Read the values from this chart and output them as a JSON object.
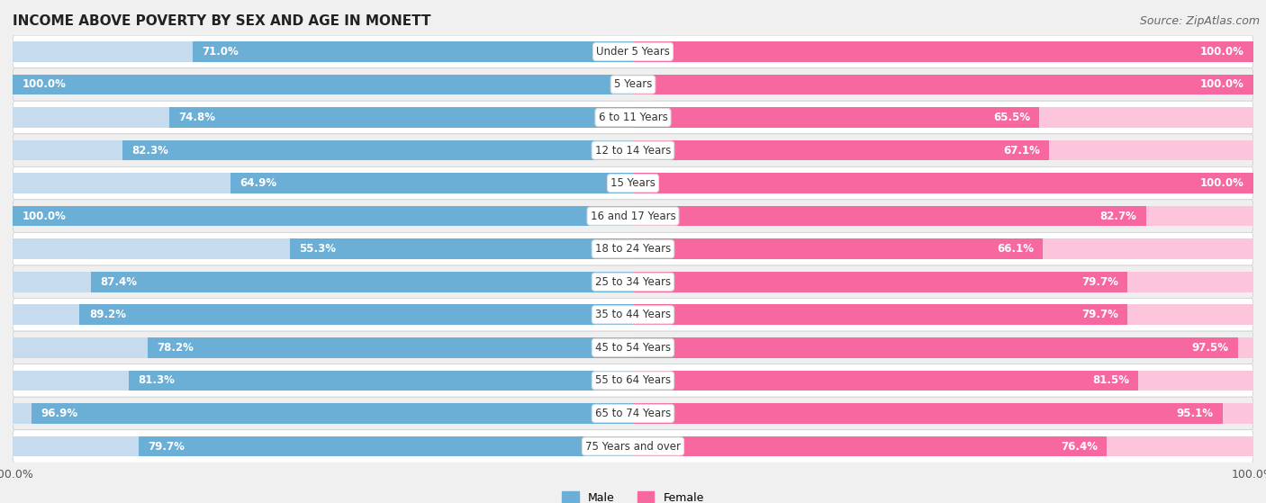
{
  "title": "INCOME ABOVE POVERTY BY SEX AND AGE IN MONETT",
  "source": "Source: ZipAtlas.com",
  "categories": [
    "Under 5 Years",
    "5 Years",
    "6 to 11 Years",
    "12 to 14 Years",
    "15 Years",
    "16 and 17 Years",
    "18 to 24 Years",
    "25 to 34 Years",
    "35 to 44 Years",
    "45 to 54 Years",
    "55 to 64 Years",
    "65 to 74 Years",
    "75 Years and over"
  ],
  "male_values": [
    71.0,
    100.0,
    74.8,
    82.3,
    64.9,
    100.0,
    55.3,
    87.4,
    89.2,
    78.2,
    81.3,
    96.9,
    79.7
  ],
  "female_values": [
    100.0,
    100.0,
    65.5,
    67.1,
    100.0,
    82.7,
    66.1,
    79.7,
    79.7,
    97.5,
    81.5,
    95.1,
    76.4
  ],
  "male_color": "#6baed6",
  "male_color_light": "#c6dcee",
  "female_color": "#f768a1",
  "female_color_light": "#fcc5dc",
  "male_label": "Male",
  "female_label": "Female",
  "row_colors": [
    "#ffffff",
    "#efefef"
  ],
  "bar_height": 0.62,
  "title_fontsize": 11,
  "label_fontsize": 8.5,
  "tick_fontsize": 9,
  "source_fontsize": 9
}
